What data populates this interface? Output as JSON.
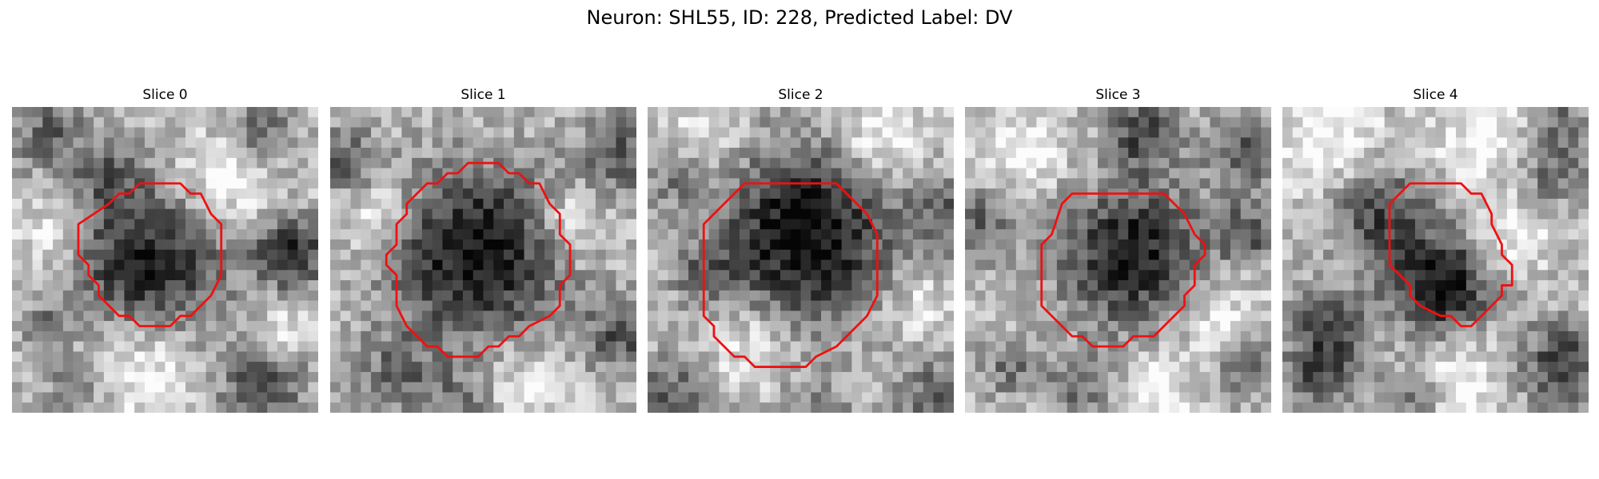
{
  "figure": {
    "title": "Neuron: SHL55, ID: 228, Predicted Label: DV"
  },
  "panels": [
    {
      "title": "Slice 0",
      "seed": 11,
      "dark_blobs": [
        [
          13,
          15,
          5.2,
          0.65
        ],
        [
          27,
          14,
          2.6,
          0.55
        ],
        [
          3,
          2,
          2.5,
          0.35
        ],
        [
          9,
          6,
          2.5,
          0.3
        ],
        [
          24,
          2,
          2.0,
          0.35
        ],
        [
          24,
          27,
          3.2,
          0.4
        ],
        [
          6,
          27,
          2.5,
          0.3
        ],
        [
          3,
          21,
          1.5,
          0.35
        ]
      ],
      "light_blobs": [
        [
          20,
          7,
          3.0,
          0.3
        ],
        [
          12,
          25,
          4.0,
          0.3
        ],
        [
          3,
          12,
          2.0,
          0.25
        ],
        [
          26,
          21,
          2.0,
          0.25
        ]
      ],
      "contour": [
        [
          12.5,
          7.5
        ],
        [
          16.5,
          7.5
        ],
        [
          17.5,
          8.5
        ],
        [
          18.5,
          8.5
        ],
        [
          19.5,
          10.5
        ],
        [
          20.5,
          11.5
        ],
        [
          20.5,
          16.5
        ],
        [
          19.5,
          18.5
        ],
        [
          17.5,
          20.5
        ],
        [
          16.5,
          20.5
        ],
        [
          15.5,
          21.5
        ],
        [
          12.5,
          21.5
        ],
        [
          11.5,
          20.5
        ],
        [
          10.5,
          20.5
        ],
        [
          8.5,
          18.5
        ],
        [
          8.5,
          17.5
        ],
        [
          7.5,
          16.5
        ],
        [
          7.5,
          15.5
        ],
        [
          6.5,
          14.5
        ],
        [
          6.5,
          11.5
        ],
        [
          9.5,
          9.5
        ],
        [
          10.5,
          8.5
        ],
        [
          11.5,
          8.5
        ]
      ]
    },
    {
      "title": "Slice 1",
      "seed": 23,
      "dark_blobs": [
        [
          14,
          14,
          6.0,
          0.7
        ],
        [
          1,
          5,
          2.5,
          0.35
        ],
        [
          28,
          4,
          3.0,
          0.35
        ],
        [
          28,
          22,
          2.5,
          0.4
        ],
        [
          6,
          26,
          3.0,
          0.3
        ],
        [
          13,
          29,
          2.5,
          0.3
        ]
      ],
      "light_blobs": [
        [
          4,
          10,
          2.5,
          0.3
        ],
        [
          23,
          11,
          2.5,
          0.3
        ],
        [
          18,
          27,
          3.0,
          0.25
        ]
      ],
      "contour": [
        [
          13.5,
          5.5
        ],
        [
          16.5,
          5.5
        ],
        [
          17.5,
          6.5
        ],
        [
          18.5,
          6.5
        ],
        [
          19.5,
          7.5
        ],
        [
          20.5,
          7.5
        ],
        [
          21.5,
          9.5
        ],
        [
          22.5,
          10.5
        ],
        [
          22.5,
          12.5
        ],
        [
          23.5,
          13.5
        ],
        [
          23.5,
          16.5
        ],
        [
          22.5,
          17.5
        ],
        [
          22.5,
          19.5
        ],
        [
          21.5,
          20.5
        ],
        [
          19.5,
          21.5
        ],
        [
          18.5,
          22.5
        ],
        [
          17.5,
          22.5
        ],
        [
          16.5,
          23.5
        ],
        [
          15.5,
          23.5
        ],
        [
          14.5,
          24.5
        ],
        [
          11.5,
          24.5
        ],
        [
          10.5,
          23.5
        ],
        [
          9.5,
          23.5
        ],
        [
          7.5,
          21.5
        ],
        [
          6.5,
          19.5
        ],
        [
          6.5,
          16.5
        ],
        [
          5.5,
          15.5
        ],
        [
          5.5,
          14.5
        ],
        [
          6.5,
          13.5
        ],
        [
          6.5,
          11.5
        ],
        [
          7.5,
          10.5
        ],
        [
          7.5,
          9.5
        ],
        [
          9.5,
          7.5
        ],
        [
          10.5,
          7.5
        ],
        [
          11.5,
          6.5
        ],
        [
          12.5,
          6.5
        ]
      ]
    },
    {
      "title": "Slice 2",
      "seed": 37,
      "dark_blobs": [
        [
          15,
          12,
          6.0,
          0.75
        ],
        [
          2,
          6,
          2.5,
          0.3
        ],
        [
          29,
          10,
          2.5,
          0.35
        ],
        [
          5,
          16,
          2.0,
          0.3
        ],
        [
          2,
          28,
          3.0,
          0.35
        ],
        [
          28,
          28,
          3.0,
          0.35
        ],
        [
          16,
          30,
          2.5,
          0.3
        ]
      ],
      "light_blobs": [
        [
          4,
          3,
          3.0,
          0.25
        ],
        [
          22,
          3,
          3.0,
          0.3
        ],
        [
          9,
          23,
          3.0,
          0.25
        ],
        [
          26,
          19,
          2.5,
          0.2
        ]
      ],
      "contour": [
        [
          9.5,
          7.5
        ],
        [
          18.5,
          7.5
        ],
        [
          19.5,
          8.5
        ],
        [
          20.5,
          9.5
        ],
        [
          21.5,
          10.5
        ],
        [
          22.5,
          12.5
        ],
        [
          22.5,
          18.5
        ],
        [
          21.5,
          20.5
        ],
        [
          20.5,
          21.5
        ],
        [
          19.5,
          22.5
        ],
        [
          18.5,
          23.5
        ],
        [
          16.5,
          24.5
        ],
        [
          15.5,
          25.5
        ],
        [
          10.5,
          25.5
        ],
        [
          9.5,
          24.5
        ],
        [
          8.5,
          24.5
        ],
        [
          6.5,
          22.5
        ],
        [
          6.5,
          21.5
        ],
        [
          5.5,
          20.5
        ],
        [
          5.5,
          11.5
        ],
        [
          6.5,
          10.5
        ],
        [
          7.5,
          9.5
        ],
        [
          8.5,
          8.5
        ]
      ]
    },
    {
      "title": "Slice 3",
      "seed": 53,
      "dark_blobs": [
        [
          16,
          14,
          5.0,
          0.65
        ],
        [
          17,
          2,
          2.5,
          0.45
        ],
        [
          27,
          4,
          2.5,
          0.4
        ],
        [
          1,
          11,
          2.5,
          0.35
        ],
        [
          27,
          12,
          2.0,
          0.4
        ],
        [
          27,
          25,
          2.0,
          0.35
        ],
        [
          11,
          27,
          2.5,
          0.3
        ],
        [
          4,
          25,
          2.0,
          0.3
        ]
      ],
      "light_blobs": [
        [
          5,
          4,
          3.0,
          0.25
        ],
        [
          24,
          20,
          3.0,
          0.25
        ],
        [
          18,
          27,
          2.5,
          0.25
        ]
      ],
      "contour": [
        [
          10.5,
          8.5
        ],
        [
          19.5,
          8.5
        ],
        [
          20.5,
          9.5
        ],
        [
          21.5,
          10.5
        ],
        [
          22.5,
          12.5
        ],
        [
          23.5,
          13.5
        ],
        [
          23.5,
          14.5
        ],
        [
          22.5,
          15.5
        ],
        [
          22.5,
          17.5
        ],
        [
          21.5,
          18.5
        ],
        [
          21.5,
          19.5
        ],
        [
          19.5,
          21.5
        ],
        [
          18.5,
          22.5
        ],
        [
          16.5,
          22.5
        ],
        [
          15.5,
          23.5
        ],
        [
          12.5,
          23.5
        ],
        [
          11.5,
          22.5
        ],
        [
          10.5,
          22.5
        ],
        [
          9.5,
          21.5
        ],
        [
          8.5,
          20.5
        ],
        [
          7.5,
          19.5
        ],
        [
          7.5,
          18.5
        ],
        [
          7.5,
          13.5
        ],
        [
          8.5,
          12.5
        ],
        [
          9.5,
          9.5
        ]
      ]
    },
    {
      "title": "Slice 4",
      "seed": 71,
      "dark_blobs": [
        [
          15,
          17,
          3.5,
          0.7
        ],
        [
          9,
          10,
          3.5,
          0.45
        ],
        [
          4,
          21,
          2.5,
          0.5
        ],
        [
          3,
          26,
          2.5,
          0.4
        ],
        [
          27,
          25,
          3.0,
          0.5
        ],
        [
          12,
          28,
          2.0,
          0.3
        ],
        [
          26,
          6,
          2.5,
          0.3
        ],
        [
          27,
          1,
          2.0,
          0.3
        ]
      ],
      "light_blobs": [
        [
          4,
          3,
          3.5,
          0.3
        ],
        [
          19,
          3,
          3.0,
          0.25
        ],
        [
          22,
          12,
          2.5,
          0.25
        ],
        [
          17,
          26,
          3.0,
          0.25
        ]
      ],
      "contour": [
        [
          12.5,
          7.5
        ],
        [
          17.5,
          7.5
        ],
        [
          18.5,
          8.5
        ],
        [
          19.5,
          8.5
        ],
        [
          20.5,
          10.5
        ],
        [
          20.5,
          11.5
        ],
        [
          21.5,
          13.5
        ],
        [
          21.5,
          14.5
        ],
        [
          22.5,
          15.5
        ],
        [
          22.5,
          17.5
        ],
        [
          21.5,
          17.5
        ],
        [
          21.5,
          18.5
        ],
        [
          18.5,
          21.5
        ],
        [
          17.5,
          21.5
        ],
        [
          16.5,
          20.5
        ],
        [
          15.5,
          20.5
        ],
        [
          13.5,
          19.5
        ],
        [
          12.5,
          18.5
        ],
        [
          12.5,
          17.5
        ],
        [
          10.5,
          15.5
        ],
        [
          10.5,
          9.5
        ]
      ]
    }
  ],
  "contour_color": "#ee1111"
}
